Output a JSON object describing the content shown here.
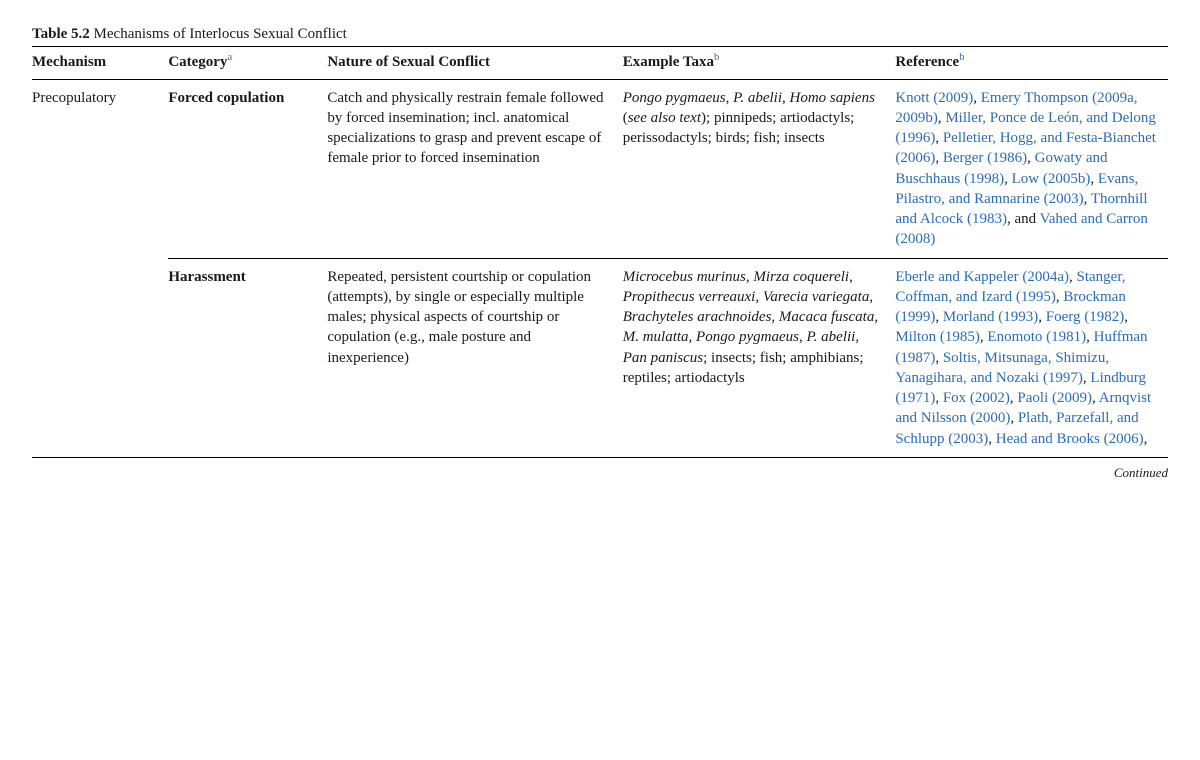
{
  "title_label": "Table 5.2",
  "title_text": "Mechanisms of Interlocus Sexual Conflict",
  "headers": {
    "mechanism": "Mechanism",
    "category": "Category",
    "category_sup": "a",
    "nature": "Nature of Sexual Conflict",
    "taxa": "Example Taxa",
    "taxa_sup": "b",
    "reference": "Reference",
    "reference_sup": "b"
  },
  "rows": [
    {
      "mechanism": "Precopulatory",
      "category": "Forced copulation",
      "nature": "Catch and physically restrain female followed by forced insemination; incl. anatomical specializations to grasp and prevent escape of female prior to forced insemination",
      "taxa_italic1": "Pongo pygmaeus",
      "taxa_sep1": ", ",
      "taxa_italic2": "P. abelii",
      "taxa_sep2": ", ",
      "taxa_italic3": "Homo sapiens",
      "taxa_paren_open": " (",
      "taxa_paren_italic": "see also text",
      "taxa_paren_close": "); ",
      "taxa_rest": "pinnipeds; artiodactyls; perissodactyls; birds; fish; insects",
      "refs": [
        {
          "t": "Knott (2009)",
          "after": ", "
        },
        {
          "t": "Emery Thompson (2009a, 2009b)",
          "after": ", "
        },
        {
          "t": "Miller, Ponce de León, and Delong (1996)",
          "after": ", "
        },
        {
          "t": "Pelletier, Hogg, and Festa-Bianchet (2006)",
          "after": ", "
        },
        {
          "t": "Berger (1986)",
          "after": ", "
        },
        {
          "t": "Gowaty and Buschhaus (1998)",
          "after": ", "
        },
        {
          "t": "Low (2005b)",
          "after": ", "
        },
        {
          "t": "Evans, Pilastro, and Ramnarine (2003)",
          "after": ", "
        },
        {
          "t": "Thornhill and Alcock (1983)",
          "after": ", and "
        },
        {
          "t": "Vahed and Carron (2008)",
          "after": ""
        }
      ]
    },
    {
      "mechanism": "",
      "category": "Harassment",
      "nature": "Repeated, persistent courtship or copulation (attempts), by single or especially multiple males; physical aspects of courtship or copulation (e.g., male posture and inexperience)",
      "taxa_list": [
        {
          "i": "Microcebus murinus",
          "after": ", "
        },
        {
          "i": "Mirza coquereli",
          "after": ", "
        },
        {
          "i": "Propithecus verreauxi",
          "after": ", "
        },
        {
          "i": "Varecia variegata",
          "after": ", "
        },
        {
          "i": "Brachyteles arachnoides",
          "after": ", "
        },
        {
          "i": "Macaca fuscata",
          "after": ", "
        },
        {
          "i": "M. mulatta",
          "after": ", "
        },
        {
          "i": "Pongo pygmaeus",
          "after": ", "
        },
        {
          "i": "P. abelii",
          "after": ", "
        },
        {
          "i": "Pan paniscus",
          "after": "; "
        }
      ],
      "taxa_rest": "insects; fish; amphibians; reptiles; artiodactyls",
      "refs": [
        {
          "t": "Eberle and Kappeler (2004a)",
          "after": ", "
        },
        {
          "t": "Stanger, Coffman, and Izard (1995)",
          "after": ", "
        },
        {
          "t": "Brockman (1999)",
          "after": ", "
        },
        {
          "t": "Morland (1993)",
          "after": ", "
        },
        {
          "t": "Foerg (1982)",
          "after": ", "
        },
        {
          "t": "Milton (1985)",
          "after": ", "
        },
        {
          "t": "Enomoto (1981)",
          "after": ", "
        },
        {
          "t": "Huffman (1987)",
          "after": ", "
        },
        {
          "t": "Soltis, Mitsunaga, Shimizu, Yanagihara, and Nozaki (1997)",
          "after": ", "
        },
        {
          "t": "Lindburg (1971)",
          "after": ", "
        },
        {
          "t": "Fox (2002)",
          "after": ", "
        },
        {
          "t": "Paoli (2009)",
          "after": ", "
        },
        {
          "t": "Arnqvist and Nilsson (2000)",
          "after": ", "
        },
        {
          "t": "Plath, Parzefall, and Schlupp (2003)",
          "after": ", "
        },
        {
          "t": "Head and Brooks (2006)",
          "after": ","
        }
      ]
    }
  ],
  "continued": "Continued"
}
